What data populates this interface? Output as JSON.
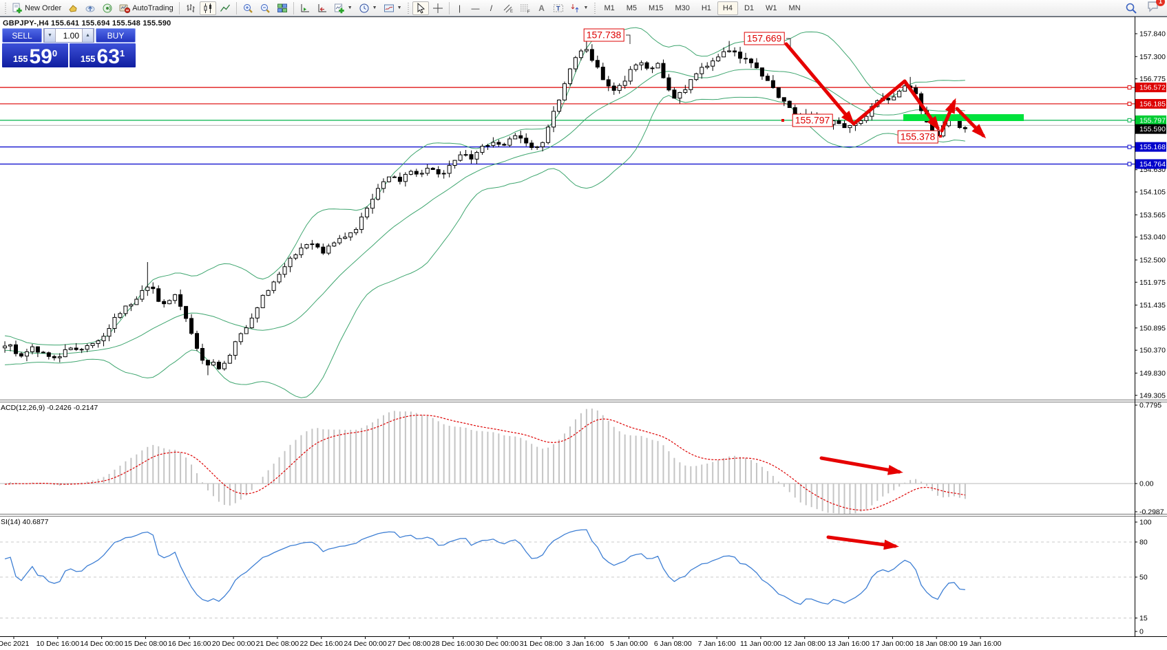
{
  "toolbar": {
    "new_order_label": "New Order",
    "autotrading_label": "AutoTrading",
    "timeframes": [
      "M1",
      "M5",
      "M15",
      "M30",
      "H1",
      "H4",
      "D1",
      "W1",
      "MN"
    ],
    "active_timeframe": "H4",
    "notification_count": "1"
  },
  "trade_panel": {
    "symbol_line": "GBPJPY-,H4  155.641 155.694 155.548 155.590",
    "sell_label": "SELL",
    "buy_label": "BUY",
    "volume": "1.00",
    "sell": {
      "prefix": "155",
      "big": "59",
      "sup": "0"
    },
    "buy": {
      "prefix": "155",
      "big": "63",
      "sup": "1"
    }
  },
  "chart_data": {
    "type": "candlestick",
    "symbol": "GBPJPY-",
    "timeframe": "H4",
    "current_ohlc": {
      "open": "155.641",
      "high": "155.694",
      "low": "155.548",
      "close": "155.590"
    },
    "y_ticks": [
      157.84,
      157.3,
      156.775,
      154.63,
      154.105,
      153.565,
      153.04,
      152.5,
      151.975,
      151.435,
      150.895,
      150.37,
      149.83,
      149.305
    ],
    "price_lines": [
      {
        "price": 156.572,
        "label": "156.572",
        "color": "#dd0000",
        "box": "#dd0000",
        "line": true
      },
      {
        "price": 156.185,
        "label": "156.185",
        "color": "#dd0000",
        "box": "#dd0000",
        "line": true
      },
      {
        "price": 155.797,
        "label": "155.797",
        "color": "#00b44a",
        "box": "#00cc33",
        "line": true
      },
      {
        "price": 155.675,
        "label": "",
        "color": "#c0c0c0",
        "box": "",
        "line": true
      },
      {
        "price": 155.59,
        "label": "155.590",
        "color": "#000000",
        "box": "#000000",
        "line": false
      },
      {
        "price": 155.168,
        "label": "155.168",
        "color": "#0000cc",
        "box": "#0000cc",
        "line": true
      },
      {
        "price": 154.764,
        "label": "154.764",
        "color": "#0000cc",
        "box": "#0000cc",
        "line": true
      }
    ],
    "price_path": [
      [
        0,
        150.35
      ],
      [
        14,
        150.55
      ],
      [
        28,
        150.2
      ],
      [
        45,
        150.45
      ],
      [
        62,
        150.3
      ],
      [
        80,
        150.15
      ],
      [
        98,
        150.45
      ],
      [
        115,
        150.4
      ],
      [
        132,
        150.55
      ],
      [
        150,
        150.7
      ],
      [
        165,
        151.1
      ],
      [
        180,
        151.35
      ],
      [
        196,
        151.55
      ],
      [
        210,
        151.8
      ],
      [
        220,
        151.9
      ],
      [
        230,
        151.55
      ],
      [
        242,
        151.45
      ],
      [
        254,
        151.65
      ],
      [
        266,
        151.3
      ],
      [
        278,
        150.75
      ],
      [
        290,
        150.3
      ],
      [
        300,
        149.95
      ],
      [
        310,
        150.1
      ],
      [
        320,
        149.9
      ],
      [
        332,
        150.2
      ],
      [
        342,
        150.55
      ],
      [
        360,
        151.0
      ],
      [
        380,
        151.6
      ],
      [
        400,
        152.0
      ],
      [
        412,
        152.3
      ],
      [
        425,
        152.6
      ],
      [
        445,
        152.9
      ],
      [
        470,
        152.7
      ],
      [
        490,
        153.0
      ],
      [
        510,
        153.1
      ],
      [
        520,
        153.3
      ],
      [
        535,
        153.8
      ],
      [
        550,
        154.2
      ],
      [
        565,
        154.5
      ],
      [
        580,
        154.35
      ],
      [
        595,
        154.6
      ],
      [
        610,
        154.45
      ],
      [
        625,
        154.7
      ],
      [
        640,
        154.5
      ],
      [
        655,
        154.8
      ],
      [
        670,
        155.0
      ],
      [
        685,
        154.9
      ],
      [
        700,
        155.15
      ],
      [
        715,
        155.3
      ],
      [
        730,
        155.2
      ],
      [
        745,
        155.45
      ],
      [
        760,
        155.35
      ],
      [
        775,
        155.1
      ],
      [
        788,
        155.25
      ],
      [
        800,
        155.8
      ],
      [
        812,
        156.3
      ],
      [
        824,
        156.9
      ],
      [
        836,
        157.3
      ],
      [
        848,
        157.55
      ],
      [
        856,
        157.35
      ],
      [
        868,
        157.0
      ],
      [
        880,
        156.6
      ],
      [
        893,
        156.45
      ],
      [
        905,
        156.7
      ],
      [
        918,
        157.0
      ],
      [
        930,
        157.15
      ],
      [
        942,
        156.95
      ],
      [
        955,
        157.2
      ],
      [
        968,
        156.6
      ],
      [
        980,
        156.3
      ],
      [
        995,
        156.55
      ],
      [
        1010,
        156.9
      ],
      [
        1025,
        157.1
      ],
      [
        1040,
        157.25
      ],
      [
        1055,
        157.45
      ],
      [
        1062,
        157.5
      ],
      [
        1075,
        157.3
      ],
      [
        1092,
        157.15
      ],
      [
        1108,
        156.85
      ],
      [
        1124,
        156.5
      ],
      [
        1140,
        156.2
      ],
      [
        1152,
        155.95
      ],
      [
        1164,
        155.8
      ],
      [
        1176,
        156.0
      ],
      [
        1188,
        155.85
      ],
      [
        1200,
        155.7
      ],
      [
        1212,
        155.8
      ],
      [
        1224,
        155.65
      ],
      [
        1236,
        155.62
      ],
      [
        1248,
        155.75
      ],
      [
        1260,
        155.95
      ],
      [
        1272,
        156.2
      ],
      [
        1284,
        156.35
      ],
      [
        1296,
        156.3
      ],
      [
        1308,
        156.5
      ],
      [
        1320,
        156.65
      ],
      [
        1330,
        156.4
      ],
      [
        1340,
        155.95
      ],
      [
        1350,
        155.6
      ],
      [
        1360,
        155.45
      ],
      [
        1367,
        155.5
      ],
      [
        1375,
        155.85
      ],
      [
        1383,
        156.0
      ],
      [
        1391,
        155.7
      ],
      [
        1397,
        155.55
      ],
      [
        1404,
        155.59
      ]
    ],
    "spikes": [
      {
        "x": 218,
        "high": 152.45
      },
      {
        "x": 300,
        "low": 149.78
      },
      {
        "x": 850,
        "high": 157.738
      },
      {
        "x": 1060,
        "high": 157.669
      },
      {
        "x": 1322,
        "high": 156.82
      },
      {
        "x": 1362,
        "low": 155.378
      }
    ],
    "x_labels": [
      "Dec 2021",
      "10 Dec 16:00",
      "14 Dec 00:00",
      "15 Dec 08:00",
      "16 Dec 16:00",
      "20 Dec 00:00",
      "21 Dec 08:00",
      "22 Dec 16:00",
      "24 Dec 00:00",
      "27 Dec 08:00",
      "28 Dec 16:00",
      "30 Dec 00:00",
      "31 Dec 08:00",
      "3 Jan 16:00",
      "5 Jan 00:00",
      "6 Jan 08:00",
      "7 Jan 16:00",
      "11 Jan 00:00",
      "12 Jan 08:00",
      "13 Jan 16:00",
      "17 Jan 00:00",
      "18 Jan 08:00",
      "19 Jan 16:00"
    ],
    "annotations": [
      {
        "text": "157.738",
        "x": 877,
        "y": 51
      },
      {
        "text": "157.669",
        "x": 1110,
        "y": 56
      },
      {
        "text": "155.797",
        "x": 1180,
        "y": 175
      },
      {
        "text": "155.378",
        "x": 1333,
        "y": 199
      }
    ],
    "green_zone": {
      "x": 1312,
      "y": 166,
      "width": 175,
      "height": 10,
      "color": "#00e23c"
    },
    "arrows_main": [
      {
        "pts": [
          [
            1142,
            64
          ],
          [
            1238,
            178
          ]
        ],
        "head": true
      },
      {
        "pts": [
          [
            1240,
            180
          ],
          [
            1314,
            118
          ]
        ],
        "head": false
      },
      {
        "pts": [
          [
            1314,
            118
          ],
          [
            1362,
            186
          ]
        ],
        "head": true
      },
      {
        "pts": [
          [
            1368,
            190
          ],
          [
            1386,
            148
          ]
        ],
        "head": true
      },
      {
        "pts": [
          [
            1390,
            158
          ],
          [
            1428,
            197
          ]
        ],
        "head": true
      }
    ],
    "arrow_macd": {
      "pts": [
        [
          1193,
          666
        ],
        [
          1306,
          686
        ]
      ],
      "head": true
    },
    "arrow_rsi": {
      "pts": [
        [
          1203,
          781
        ],
        [
          1300,
          794
        ]
      ],
      "head": true
    },
    "macd": {
      "label": "ACD(12,26,9) -0.2426 -0.2147",
      "ticks": [
        {
          "v": 0.7795,
          "t": "0.7795"
        },
        {
          "v": 0,
          "t": "0.00"
        },
        {
          "v": -0.2987,
          "t": "-0.2987"
        }
      ]
    },
    "rsi": {
      "label": "SI(14) 40.6877",
      "ticks": [
        {
          "v": 100,
          "t": "100"
        },
        {
          "v": 80,
          "t": "80"
        },
        {
          "v": 50,
          "t": "50"
        },
        {
          "v": 15,
          "t": "15"
        },
        {
          "v": 0,
          "t": "0"
        }
      ],
      "levels": [
        80,
        50,
        15
      ]
    },
    "colors": {
      "band": "#3da56e",
      "bull": "#ffffff",
      "bear": "#000000",
      "wick": "#000000",
      "macd_bar": "#c4c4c4",
      "macd_signal": "#dd0000",
      "rsi_line": "#3e7fd4",
      "annotation": "#dd0000",
      "arrow": "#e60000",
      "axis": "#000000"
    }
  }
}
